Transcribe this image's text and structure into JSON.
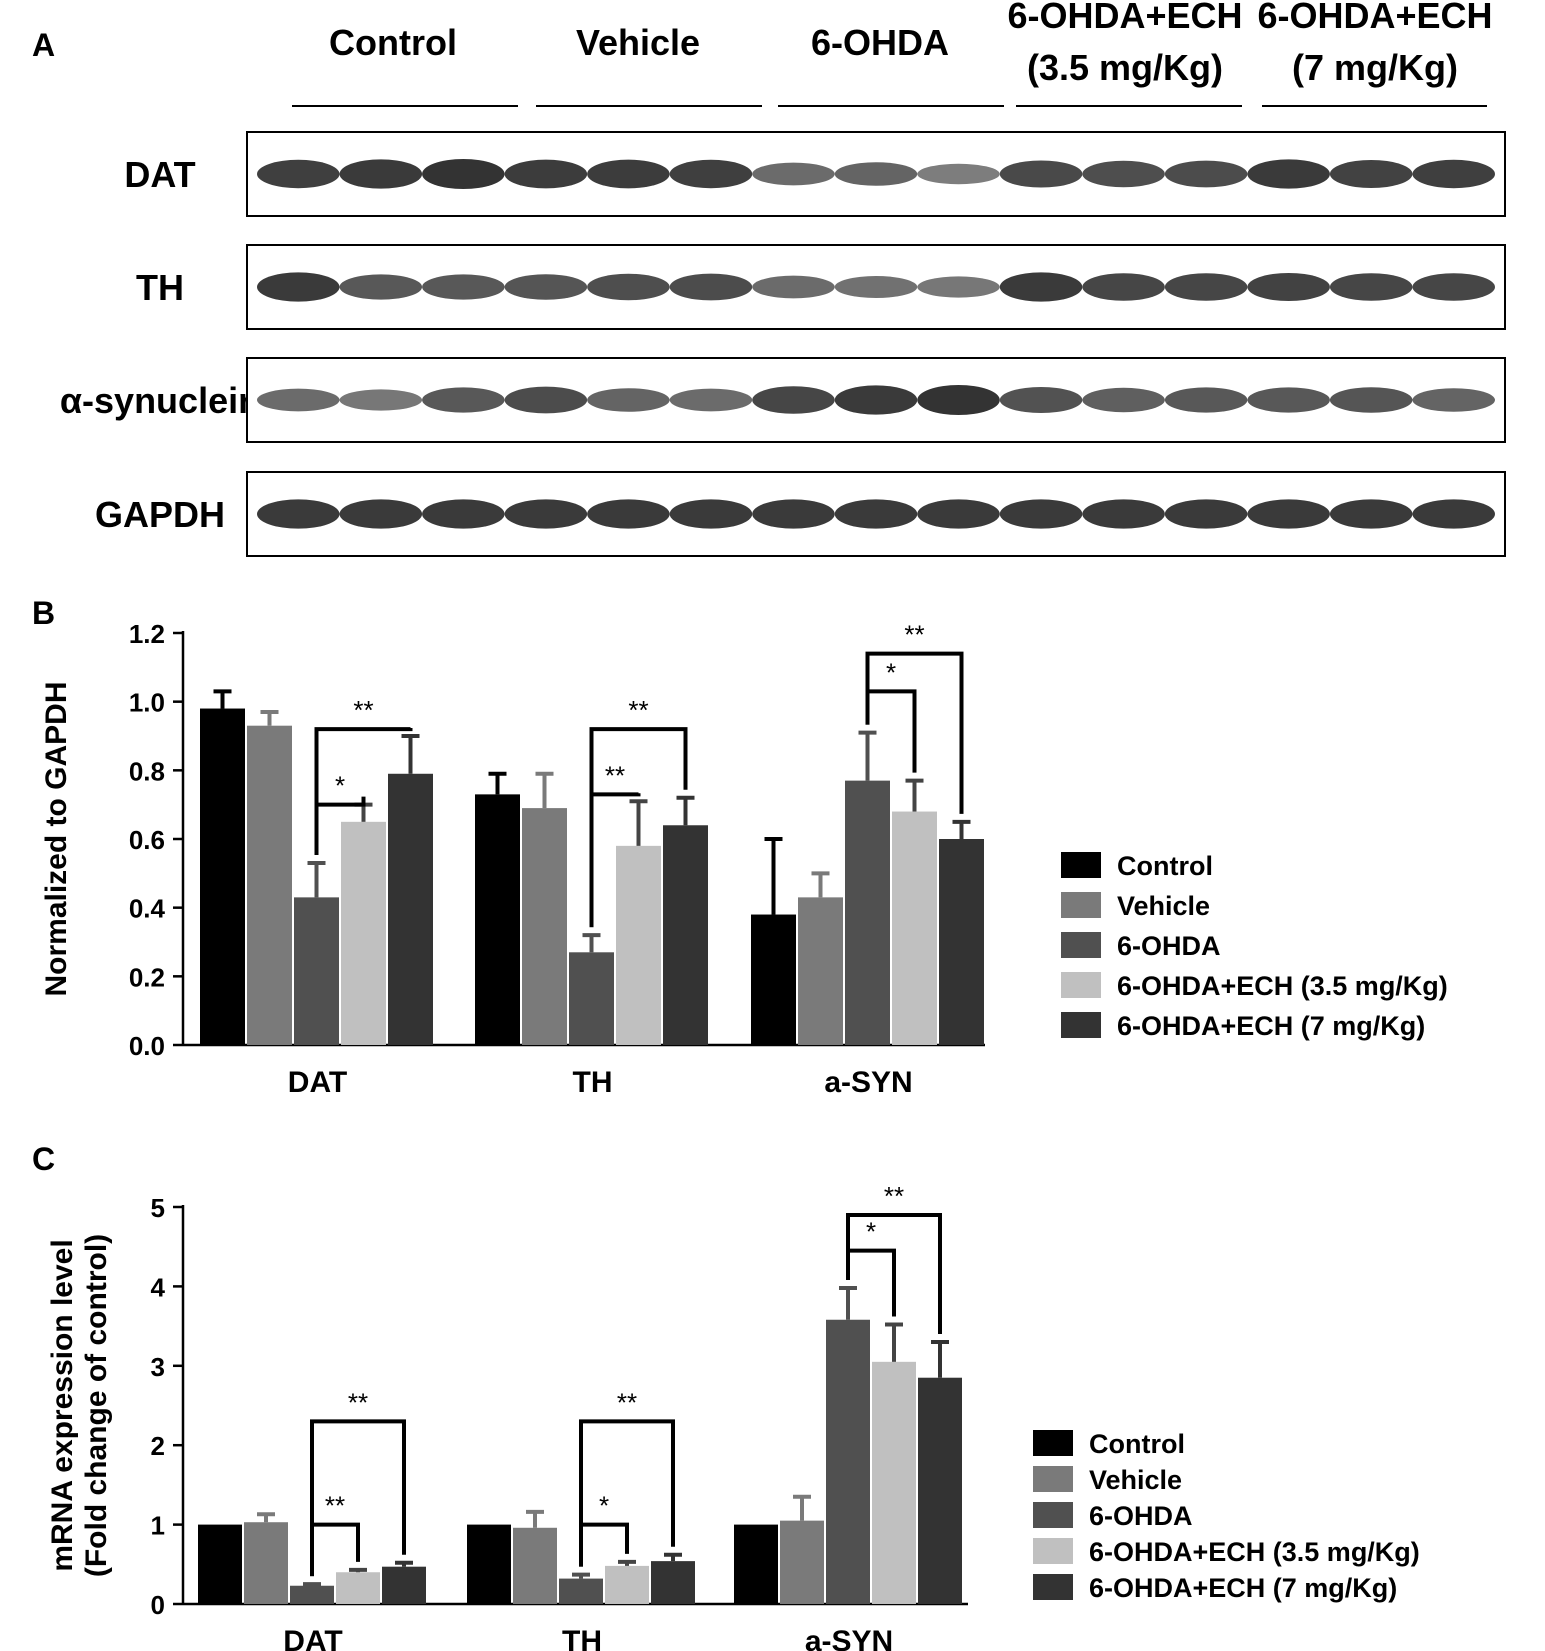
{
  "panel_a": {
    "label": "A",
    "group_labels": [
      {
        "line1": "Control",
        "line2": ""
      },
      {
        "line1": "Vehicle",
        "line2": ""
      },
      {
        "line1": "6-OHDA",
        "line2": ""
      },
      {
        "line1": "6-OHDA+ECH",
        "line2": "(3.5 mg/Kg)"
      },
      {
        "line1": "6-OHDA+ECH",
        "line2": "(7 mg/Kg)"
      }
    ],
    "blots": [
      {
        "name": "DAT",
        "intensities": [
          0.9,
          0.95,
          1.0,
          0.92,
          0.92,
          0.9,
          0.55,
          0.6,
          0.4,
          0.82,
          0.78,
          0.8,
          0.95,
          0.88,
          0.9
        ]
      },
      {
        "name": "TH",
        "intensities": [
          0.95,
          0.7,
          0.7,
          0.72,
          0.78,
          0.8,
          0.55,
          0.5,
          0.45,
          0.95,
          0.85,
          0.85,
          0.88,
          0.85,
          0.85
        ]
      },
      {
        "name": "α-synuclein",
        "intensities": [
          0.55,
          0.45,
          0.7,
          0.8,
          0.6,
          0.55,
          0.85,
          0.95,
          1.0,
          0.75,
          0.65,
          0.7,
          0.7,
          0.72,
          0.6
        ]
      },
      {
        "name": "GAPDH",
        "intensities": [
          0.95,
          0.95,
          0.95,
          0.95,
          0.95,
          0.95,
          0.95,
          0.95,
          0.95,
          0.95,
          0.95,
          0.95,
          0.95,
          0.95,
          0.95
        ]
      }
    ]
  },
  "chart_data": [
    {
      "panel": "B",
      "type": "bar",
      "ylabel": "Normalized to GAPDH",
      "xlabel": "",
      "ylim": [
        0,
        1.2
      ],
      "yticks": [
        "0.0",
        "0.2",
        "0.4",
        "0.6",
        "0.8",
        "1.0",
        "1.2"
      ],
      "categories": [
        "DAT",
        "TH",
        "a-SYN"
      ],
      "series": [
        {
          "name": "Control",
          "color": "#000000",
          "values": [
            0.98,
            0.73,
            0.38
          ],
          "errors": [
            0.05,
            0.06,
            0.22
          ]
        },
        {
          "name": "Vehicle",
          "color": "#7a7a7a",
          "values": [
            0.93,
            0.69,
            0.43
          ],
          "errors": [
            0.04,
            0.1,
            0.07
          ]
        },
        {
          "name": "6-OHDA",
          "color": "#505050",
          "values": [
            0.43,
            0.27,
            0.77
          ],
          "errors": [
            0.1,
            0.05,
            0.14
          ]
        },
        {
          "name": "6-OHDA+ECH (3.5 mg/Kg)",
          "color": "#c0c0c0",
          "values": [
            0.65,
            0.58,
            0.68
          ],
          "errors": [
            0.05,
            0.13,
            0.09
          ]
        },
        {
          "name": "6-OHDA+ECH (7 mg/Kg)",
          "color": "#333333",
          "values": [
            0.79,
            0.64,
            0.6
          ],
          "errors": [
            0.11,
            0.08,
            0.05
          ]
        }
      ],
      "significance": [
        {
          "category": 0,
          "from": 2,
          "to": 3,
          "label": "*",
          "y": 0.7
        },
        {
          "category": 0,
          "from": 2,
          "to": 4,
          "label": "**",
          "y": 0.92
        },
        {
          "category": 1,
          "from": 2,
          "to": 3,
          "label": "**",
          "y": 0.73
        },
        {
          "category": 1,
          "from": 2,
          "to": 4,
          "label": "**",
          "y": 0.92
        },
        {
          "category": 2,
          "from": 2,
          "to": 3,
          "label": "*",
          "y": 1.03
        },
        {
          "category": 2,
          "from": 2,
          "to": 4,
          "label": "**",
          "y": 1.14
        }
      ],
      "legend_position": "right"
    },
    {
      "panel": "C",
      "type": "bar",
      "ylabel": "mRNA expression level",
      "ylabel2": "(Fold change of control)",
      "xlabel": "",
      "ylim": [
        0,
        5
      ],
      "yticks": [
        "0",
        "1",
        "2",
        "3",
        "4",
        "5"
      ],
      "categories": [
        "DAT",
        "TH",
        "a-SYN"
      ],
      "series": [
        {
          "name": "Control",
          "color": "#000000",
          "values": [
            1.0,
            1.0,
            1.0
          ],
          "errors": [
            0,
            0,
            0
          ]
        },
        {
          "name": "Vehicle",
          "color": "#7a7a7a",
          "values": [
            1.03,
            0.96,
            1.05
          ],
          "errors": [
            0.1,
            0.2,
            0.3
          ]
        },
        {
          "name": "6-OHDA",
          "color": "#505050",
          "values": [
            0.23,
            0.32,
            3.58
          ],
          "errors": [
            0.02,
            0.05,
            0.4
          ]
        },
        {
          "name": "6-OHDA+ECH (3.5 mg/Kg)",
          "color": "#c0c0c0",
          "values": [
            0.4,
            0.48,
            3.05
          ],
          "errors": [
            0.03,
            0.05,
            0.47
          ]
        },
        {
          "name": "6-OHDA+ECH (7 mg/Kg)",
          "color": "#333333",
          "values": [
            0.47,
            0.54,
            2.85
          ],
          "errors": [
            0.05,
            0.08,
            0.45
          ]
        }
      ],
      "significance": [
        {
          "category": 0,
          "from": 2,
          "to": 3,
          "label": "**",
          "y": 1.0
        },
        {
          "category": 0,
          "from": 2,
          "to": 4,
          "label": "**",
          "y": 2.3
        },
        {
          "category": 1,
          "from": 2,
          "to": 3,
          "label": "*",
          "y": 1.0
        },
        {
          "category": 1,
          "from": 2,
          "to": 4,
          "label": "**",
          "y": 2.3
        },
        {
          "category": 2,
          "from": 2,
          "to": 3,
          "label": "*",
          "y": 4.45
        },
        {
          "category": 2,
          "from": 2,
          "to": 4,
          "label": "**",
          "y": 4.9
        }
      ],
      "legend_position": "right"
    }
  ]
}
